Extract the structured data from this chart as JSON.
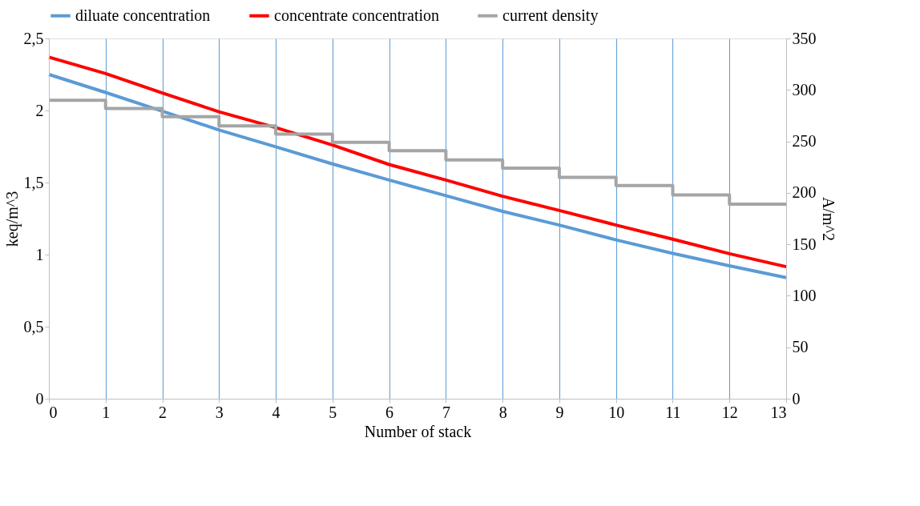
{
  "chart_data": {
    "type": "line",
    "xlabel": "Number of stack",
    "ylabel": "keq/m^3",
    "y2label": "A/m^2",
    "x": [
      0,
      1,
      2,
      3,
      4,
      5,
      6,
      7,
      8,
      9,
      10,
      11,
      12,
      13
    ],
    "series": [
      {
        "name": "diluate concentration",
        "color": "#5b9bd5",
        "values": [
          2.25,
          2.125,
          1.995,
          1.865,
          1.748,
          1.629,
          1.517,
          1.409,
          1.3,
          1.205,
          1.102,
          1.008,
          0.922,
          0.84
        ]
      },
      {
        "name": "concentrate concentration",
        "color": "#ff0000",
        "values": [
          2.37,
          2.256,
          2.121,
          1.991,
          1.881,
          1.76,
          1.625,
          1.517,
          1.405,
          1.306,
          1.205,
          1.107,
          1.006,
          0.916
        ]
      },
      {
        "name": "current density",
        "color": "#a5a5a5",
        "type": "step",
        "axis": "y2",
        "values": [
          290,
          282,
          274,
          265,
          257,
          249,
          241,
          232,
          224,
          215,
          207,
          198,
          189,
          189
        ]
      }
    ],
    "xlim": [
      0,
      13
    ],
    "xticks": [
      0,
      1,
      2,
      3,
      4,
      5,
      6,
      7,
      8,
      9,
      10,
      11,
      12,
      13
    ],
    "ylim": [
      0,
      2.5
    ],
    "yticks": [
      0,
      {
        "value": 0.5,
        "label": "0,5"
      },
      1,
      {
        "value": 1.5,
        "label": "1,5"
      },
      2,
      {
        "value": 2.5,
        "label": "2,5"
      }
    ],
    "y2lim": [
      0,
      350
    ],
    "y2ticks": [
      0,
      50,
      100,
      150,
      200,
      250,
      300,
      350
    ],
    "grid": "x",
    "legend": "top",
    "line_style": "solid",
    "marker": "none"
  }
}
